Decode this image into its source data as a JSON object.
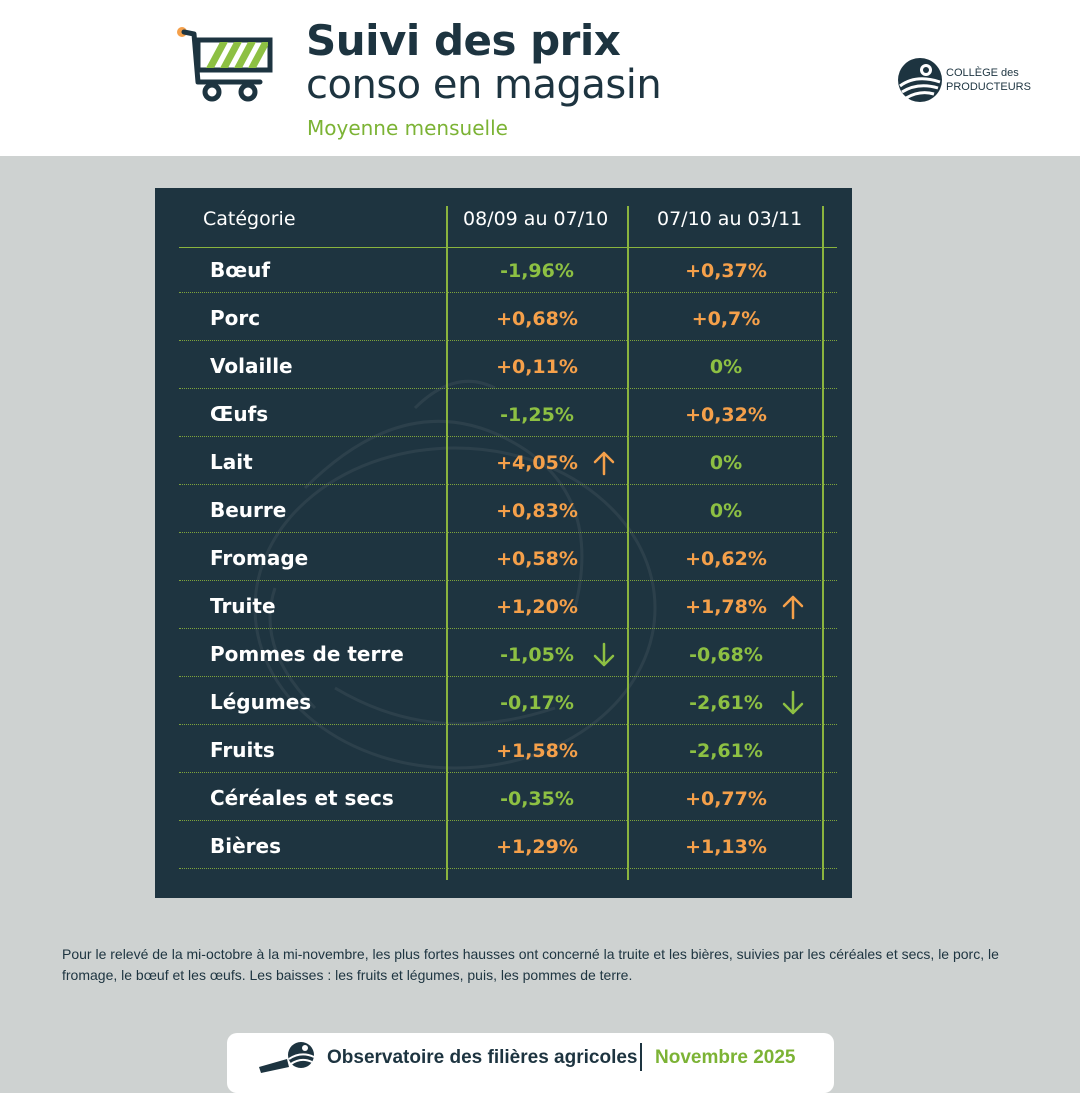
{
  "header": {
    "title_line1": "Suivi des prix",
    "title_line2": "conso en magasin",
    "subtitle": "Moyenne mensuelle",
    "icon": "shopping-cart-icon",
    "logo": {
      "line1": "COLLÈGE des",
      "line2": "PRODUCTEURS"
    }
  },
  "table": {
    "columns": [
      "Catégorie",
      "08/09 au 07/10",
      "07/10 au 03/11"
    ],
    "rows": [
      {
        "category": "Bœuf",
        "p1": "-1,96%",
        "p2": "+0,37%"
      },
      {
        "category": "Porc",
        "p1": "+0,68%",
        "p2": "+0,7%"
      },
      {
        "category": "Volaille",
        "p1": "+0,11%",
        "p2": "0%"
      },
      {
        "category": "Œufs",
        "p1": "-1,25%",
        "p2": "+0,32%"
      },
      {
        "category": "Lait",
        "p1": "+4,05%",
        "p2": "0%",
        "p1_arrow": "up"
      },
      {
        "category": "Beurre",
        "p1": "+0,83%",
        "p2": "0%"
      },
      {
        "category": "Fromage",
        "p1": "+0,58%",
        "p2": "+0,62%"
      },
      {
        "category": "Truite",
        "p1": "+1,20%",
        "p2": "+1,78%",
        "p2_arrow": "up"
      },
      {
        "category": "Pommes de terre",
        "p1": "-1,05%",
        "p2": "-0,68%",
        "p1_arrow": "down"
      },
      {
        "category": "Légumes",
        "p1": "-0,17%",
        "p2": "-2,61%",
        "p2_arrow": "down"
      },
      {
        "category": "Fruits",
        "p1": "+1,58%",
        "p2": "-2,61%"
      },
      {
        "category": "Céréales et secs",
        "p1": "-0,35%",
        "p2": "+0,77%"
      },
      {
        "category": "Bières",
        "p1": "+1,29%",
        "p2": "+1,13%"
      }
    ],
    "colors": {
      "increase": "#f5a04a",
      "decrease_or_zero": "#8dc043"
    }
  },
  "note": "Pour le relevé de la mi-octobre à la mi-novembre, les plus fortes hausses ont concerné la truite et les bières, suivies par les cé­réales et secs, le porc, le fromage, le bœuf et les œufs. Les baisses : les fruits et légumes, puis, les pommes de terre.",
  "footer": {
    "label": "Observatoire des filières agricoles",
    "date": "Novembre 2025"
  }
}
